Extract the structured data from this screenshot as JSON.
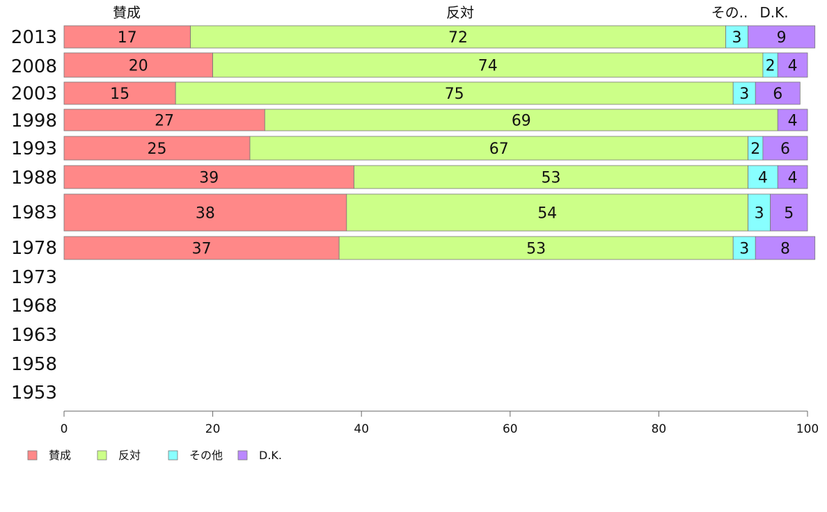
{
  "chart_data": {
    "type": "bar",
    "orientation": "horizontal",
    "stacked": true,
    "categories": [
      "2013",
      "2008",
      "2003",
      "1998",
      "1993",
      "1988",
      "1983",
      "1978",
      "1973",
      "1968",
      "1963",
      "1958",
      "1953"
    ],
    "series": [
      {
        "name": "賛成",
        "color": "#ff8888",
        "values": [
          17,
          20,
          15,
          27,
          25,
          39,
          38,
          37,
          null,
          null,
          null,
          null,
          null
        ]
      },
      {
        "name": "反対",
        "color": "#ccff88",
        "values": [
          72,
          74,
          75,
          69,
          67,
          53,
          54,
          53,
          null,
          null,
          null,
          null,
          null
        ]
      },
      {
        "name": "その他",
        "color": "#88ffff",
        "values": [
          3,
          2,
          3,
          0,
          2,
          4,
          3,
          3,
          null,
          null,
          null,
          null,
          null
        ]
      },
      {
        "name": "D.K.",
        "color": "#bb88ff",
        "values": [
          9,
          4,
          6,
          4,
          6,
          4,
          5,
          8,
          null,
          null,
          null,
          null,
          null
        ]
      }
    ],
    "column_headers": [
      "賛成",
      "反対",
      "その..",
      "D.K."
    ],
    "xlim": [
      0,
      100
    ],
    "xticks": [
      0,
      20,
      40,
      60,
      80,
      100
    ],
    "grid": false,
    "legend_position": "bottom-left"
  }
}
